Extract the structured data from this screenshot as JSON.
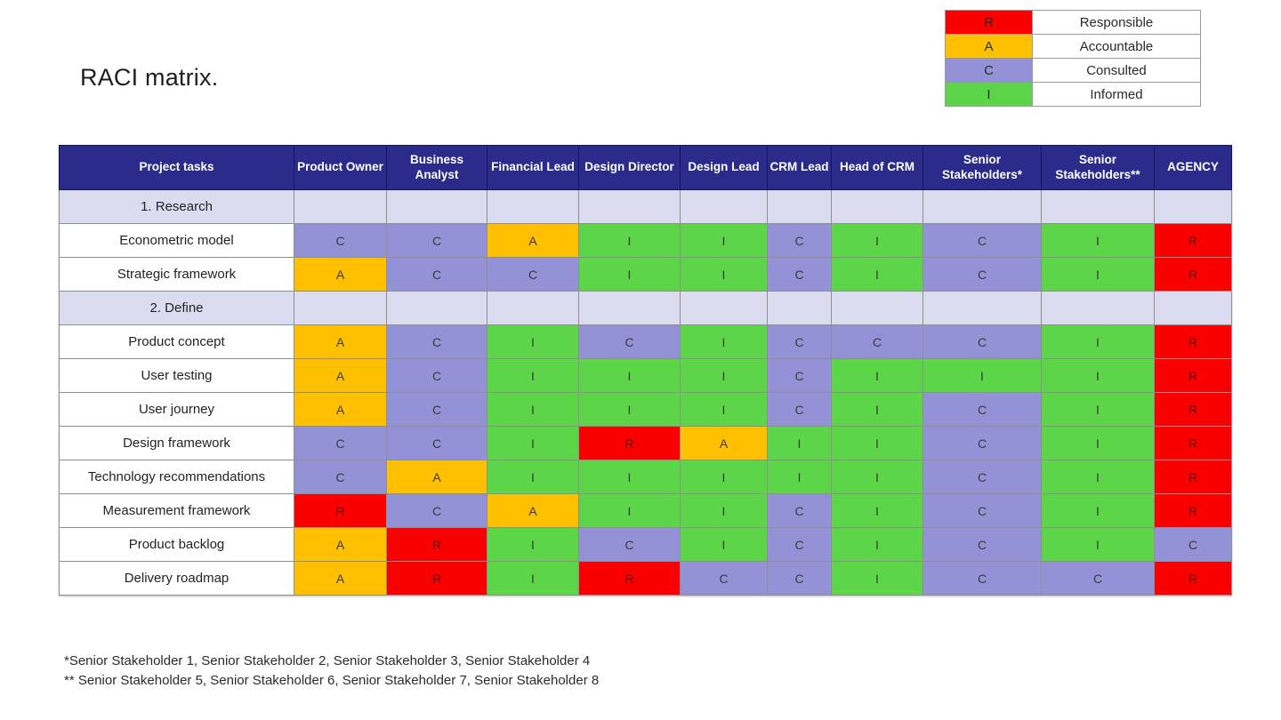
{
  "title": "RACI matrix.",
  "colors": {
    "responsible": "#fb0000",
    "accountable": "#fec000",
    "consulted": "#9492d6",
    "informed": "#5dd548",
    "header_bg": "#2b2b8c",
    "section_bg": "#dcdcf0"
  },
  "legend": [
    {
      "code": "R",
      "label": "Responsible",
      "key": "responsible"
    },
    {
      "code": "A",
      "label": "Accountable",
      "key": "accountable"
    },
    {
      "code": "C",
      "label": "Consulted",
      "key": "consulted"
    },
    {
      "code": "I",
      "label": "Informed",
      "key": "informed"
    }
  ],
  "table": {
    "first_col_header": "Project tasks",
    "columns": [
      "Product Owner",
      "Business Analyst",
      "Financial Lead",
      "Design Director",
      "Design Lead",
      "CRM Lead",
      "Head of CRM",
      "Senior Stakeholders*",
      "Senior Stakeholders**",
      "AGENCY"
    ],
    "rows": [
      {
        "type": "section",
        "label": "1. Research",
        "values": []
      },
      {
        "type": "task",
        "label": "Econometric model",
        "values": [
          "C",
          "C",
          "A",
          "I",
          "I",
          "C",
          "I",
          "C",
          "I",
          "R"
        ]
      },
      {
        "type": "task",
        "label": "Strategic framework",
        "values": [
          "A",
          "C",
          "C",
          "I",
          "I",
          "C",
          "I",
          "C",
          "I",
          "R"
        ]
      },
      {
        "type": "section",
        "label": "2. Define",
        "values": []
      },
      {
        "type": "task",
        "label": "Product concept",
        "values": [
          "A",
          "C",
          "I",
          "C",
          "I",
          "C",
          "C",
          "C",
          "I",
          "R"
        ]
      },
      {
        "type": "task",
        "label": "User testing",
        "values": [
          "A",
          "C",
          "I",
          "I",
          "I",
          "C",
          "I",
          "I",
          "I",
          "R"
        ]
      },
      {
        "type": "task",
        "label": "User journey",
        "values": [
          "A",
          "C",
          "I",
          "I",
          "I",
          "C",
          "I",
          "C",
          "I",
          "R"
        ]
      },
      {
        "type": "task",
        "label": "Design framework",
        "values": [
          "C",
          "C",
          "I",
          "R",
          "A",
          "I",
          "I",
          "C",
          "I",
          "R"
        ]
      },
      {
        "type": "task",
        "label": "Technology recommendations",
        "values": [
          "C",
          "A",
          "I",
          "I",
          "I",
          "I",
          "I",
          "C",
          "I",
          "R"
        ]
      },
      {
        "type": "task",
        "label": "Measurement framework",
        "values": [
          "R",
          "C",
          "A",
          "I",
          "I",
          "C",
          "I",
          "C",
          "I",
          "R"
        ]
      },
      {
        "type": "task",
        "label": "Product backlog",
        "values": [
          "A",
          "R",
          "I",
          "C",
          "I",
          "C",
          "I",
          "C",
          "I",
          "C"
        ]
      },
      {
        "type": "task",
        "label": "Delivery roadmap",
        "values": [
          "A",
          "R",
          "I",
          "R",
          "C",
          "C",
          "I",
          "C",
          "C",
          "R"
        ]
      }
    ]
  },
  "footnotes": [
    "*Senior Stakeholder 1, Senior Stakeholder 2, Senior Stakeholder 3, Senior Stakeholder 4",
    "** Senior Stakeholder 5, Senior Stakeholder 6, Senior Stakeholder 7, Senior Stakeholder 8"
  ]
}
